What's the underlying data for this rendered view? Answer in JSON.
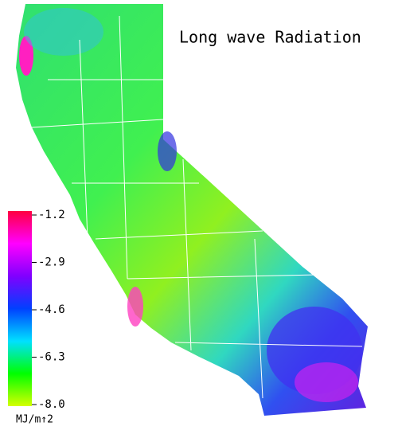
{
  "title": "Long wave Radiation",
  "colorbar": {
    "unit": "MJ/m↑2",
    "vlim": [
      -8,
      -1.2
    ],
    "ticks": [
      -1.2,
      -2.9,
      -4.6,
      -6.3,
      {
        "value": -8,
        "label": "-8.0"
      }
    ],
    "colors": [
      "#d4ff00",
      "#00ff00",
      "#00e0ff",
      "#0040ff",
      "#8000ff",
      "#ff00ff",
      "#ff0040"
    ]
  }
}
